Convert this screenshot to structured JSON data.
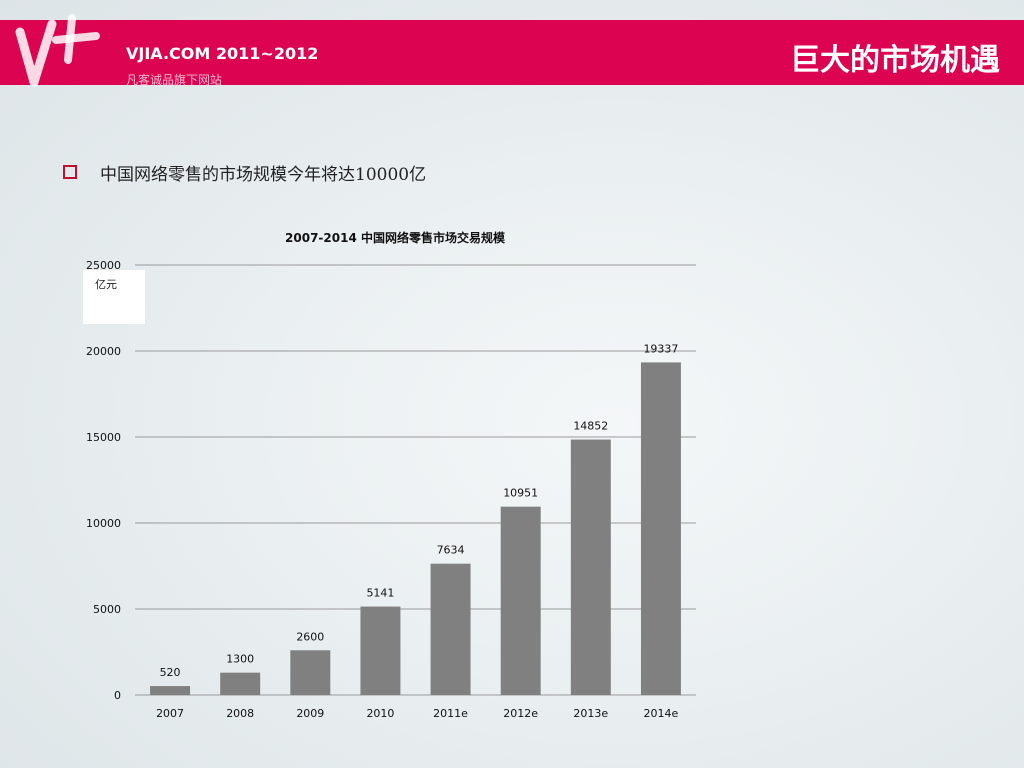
{
  "header": {
    "site_name": "VJIA.COM  2011~2012",
    "site_sub": "凡客诚品旗下网站",
    "page_title": "巨大的市场机遇",
    "logo_icon": "vplus-logo-icon"
  },
  "colors": {
    "banner": "#dc0451",
    "bar": "#808080",
    "bullet": "#c0102e"
  },
  "bullet": {
    "text": "中国网络零售的市场规模今年将达10000亿"
  },
  "chart_data": {
    "type": "bar",
    "title": "2007-2014 中国网络零售市场交易规模",
    "unit": "亿元",
    "categories": [
      "2007",
      "2008",
      "2009",
      "2010",
      "2011e",
      "2012e",
      "2013e",
      "2014e"
    ],
    "values": [
      520,
      1300,
      2600,
      5141,
      7634,
      10951,
      14852,
      19337
    ],
    "yticks": [
      0,
      5000,
      10000,
      15000,
      20000,
      25000
    ],
    "ylim": [
      0,
      25000
    ],
    "grid": true,
    "legend": "none"
  }
}
